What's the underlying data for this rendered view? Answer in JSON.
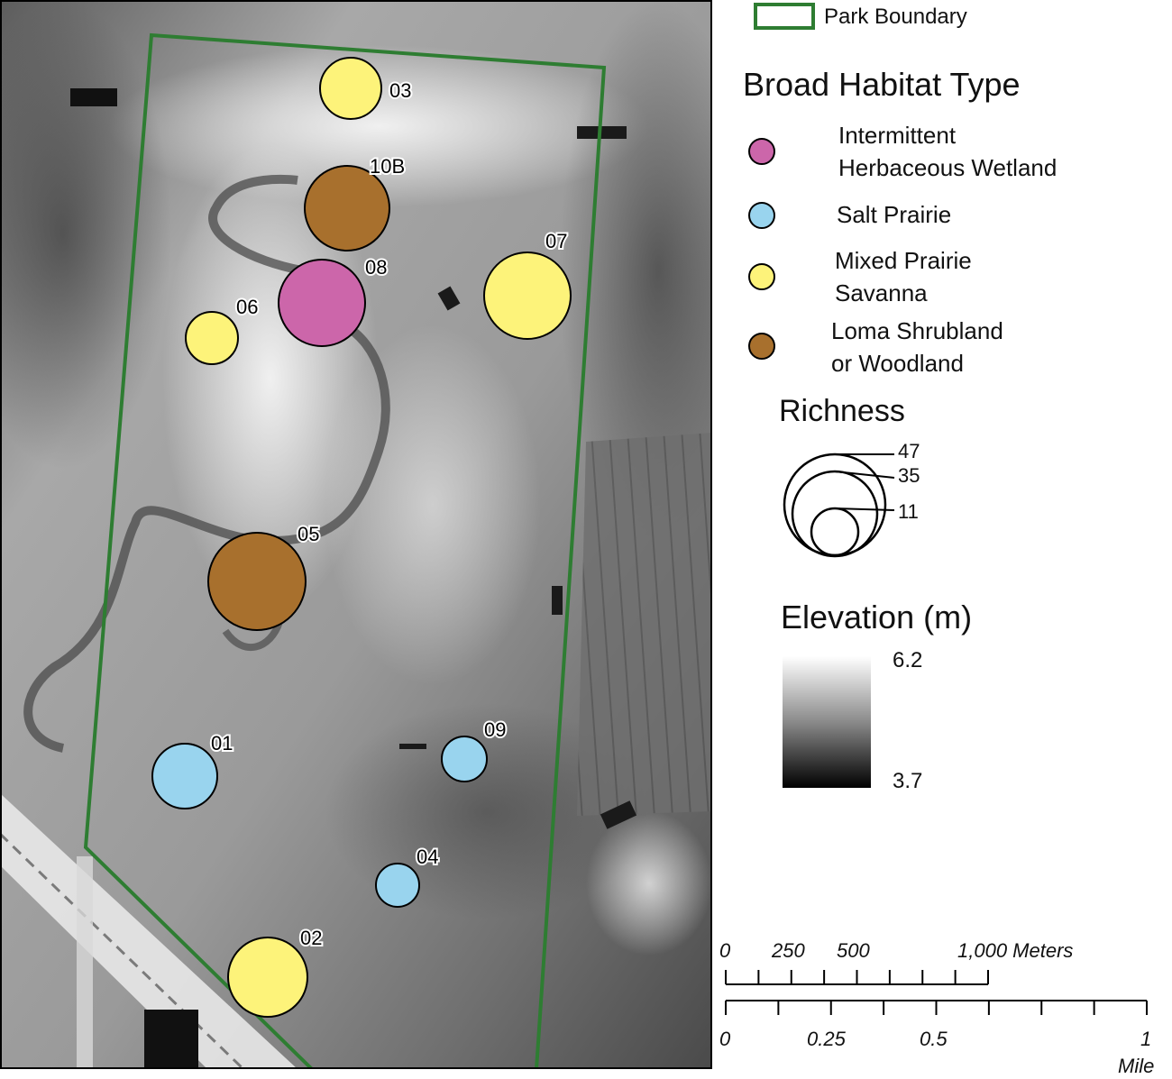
{
  "legend": {
    "park_boundary_label": "Park Boundary",
    "habitat_title": "Broad Habitat Type",
    "habitat_types": [
      {
        "line1": "Intermittent",
        "line2": "Herbaceous Wetland",
        "color": "#cc66aa"
      },
      {
        "line1": "Salt Prairie",
        "line2": "",
        "color": "#99d4ee"
      },
      {
        "line1": "Mixed Prairie",
        "line2": "Savanna",
        "color": "#fdf37a"
      },
      {
        "line1": "Loma Shrubland",
        "line2": "or Woodland",
        "color": "#a8702d"
      }
    ],
    "richness_title": "Richness",
    "richness_values": [
      "47",
      "35",
      "11"
    ],
    "elevation_title": "Elevation (m)",
    "elevation_max": "6.2",
    "elevation_min": "3.7"
  },
  "scale_bar": {
    "meter_labels": [
      "0",
      "250",
      "500",
      "1,000 Meters"
    ],
    "mile_labels": [
      "0",
      "0.25",
      "0.5",
      "1"
    ],
    "mile_unit": "Mile"
  },
  "sites": [
    {
      "id": "03",
      "habitat": "Mixed Prairie Savanna"
    },
    {
      "id": "10B",
      "habitat": "Loma Shrubland or Woodland"
    },
    {
      "id": "08",
      "habitat": "Intermittent Herbaceous Wetland"
    },
    {
      "id": "07",
      "habitat": "Mixed Prairie Savanna"
    },
    {
      "id": "06",
      "habitat": "Mixed Prairie Savanna"
    },
    {
      "id": "05",
      "habitat": "Loma Shrubland or Woodland"
    },
    {
      "id": "01",
      "habitat": "Salt Prairie"
    },
    {
      "id": "09",
      "habitat": "Salt Prairie"
    },
    {
      "id": "04",
      "habitat": "Salt Prairie"
    },
    {
      "id": "02",
      "habitat": "Mixed Prairie Savanna"
    }
  ],
  "colors": {
    "park_boundary": "#2e7d32",
    "wetland": "#cc66aa",
    "salt_prairie": "#99d4ee",
    "mixed_prairie": "#fdf37a",
    "loma": "#a8702d"
  }
}
